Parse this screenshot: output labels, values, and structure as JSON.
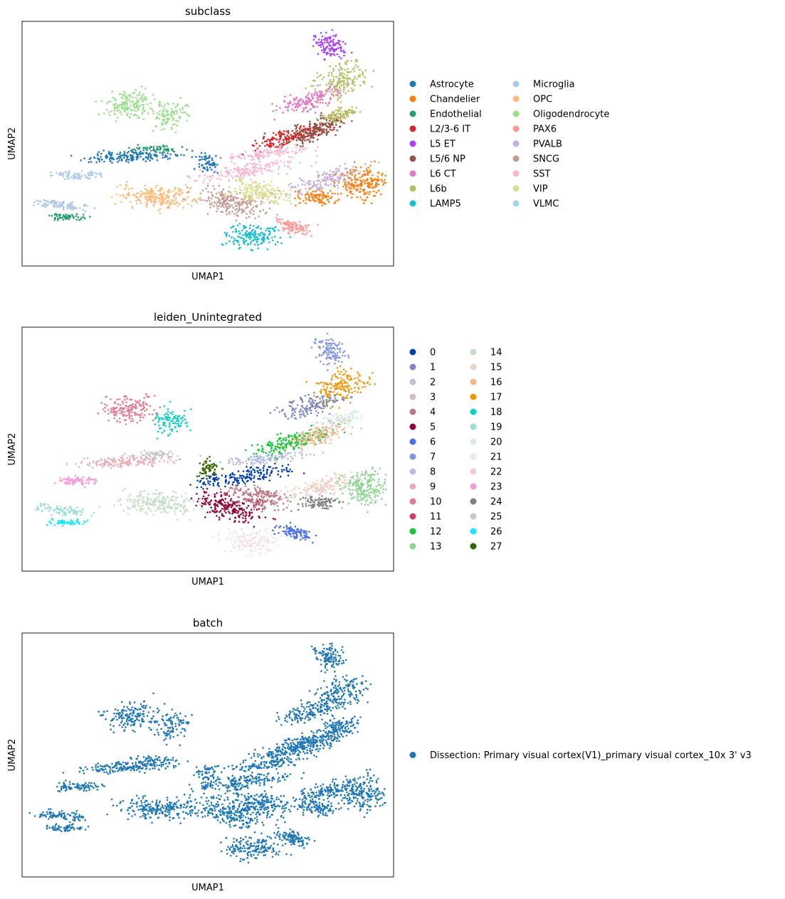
{
  "chart_data": [
    {
      "type": "scatter",
      "title": "subclass",
      "xlabel": "UMAP1",
      "ylabel": "UMAP2",
      "grid": false,
      "legend_placement": "right, two columns",
      "categories": [
        {
          "name": "Astrocyte",
          "color": "#1f77b4"
        },
        {
          "name": "Chandelier",
          "color": "#ff7f0e"
        },
        {
          "name": "Endothelial",
          "color": "#279e68"
        },
        {
          "name": "L2/3-6 IT",
          "color": "#d62728"
        },
        {
          "name": "L5 ET",
          "color": "#aa40fc"
        },
        {
          "name": "L5/6 NP",
          "color": "#8c564b"
        },
        {
          "name": "L6 CT",
          "color": "#e377c2"
        },
        {
          "name": "L6b",
          "color": "#b5bd61"
        },
        {
          "name": "LAMP5",
          "color": "#17becf"
        },
        {
          "name": "Microglia",
          "color": "#aec7e8"
        },
        {
          "name": "OPC",
          "color": "#ffbb78"
        },
        {
          "name": "Oligodendrocyte",
          "color": "#98df8a"
        },
        {
          "name": "PAX6",
          "color": "#ff9896"
        },
        {
          "name": "PVALB",
          "color": "#c5b0d5"
        },
        {
          "name": "SNCG",
          "color": "#c49c94"
        },
        {
          "name": "SST",
          "color": "#f7b6d2"
        },
        {
          "name": "VIP",
          "color": "#dbdb8d"
        },
        {
          "name": "VLMC",
          "color": "#9edae5"
        }
      ]
    },
    {
      "type": "scatter",
      "title": "leiden_Unintegrated",
      "xlabel": "UMAP1",
      "ylabel": "UMAP2",
      "grid": false,
      "legend_placement": "right, two columns",
      "categories": [
        {
          "name": "0",
          "color": "#023fa5"
        },
        {
          "name": "1",
          "color": "#7d87b9"
        },
        {
          "name": "2",
          "color": "#bec1d4"
        },
        {
          "name": "3",
          "color": "#d6bcc0"
        },
        {
          "name": "4",
          "color": "#bb7784"
        },
        {
          "name": "5",
          "color": "#8e063b"
        },
        {
          "name": "6",
          "color": "#4a6fe3"
        },
        {
          "name": "7",
          "color": "#8595e1"
        },
        {
          "name": "8",
          "color": "#b5bbe3"
        },
        {
          "name": "9",
          "color": "#e6afb9"
        },
        {
          "name": "10",
          "color": "#e07b91"
        },
        {
          "name": "11",
          "color": "#d33f6a"
        },
        {
          "name": "12",
          "color": "#11c638"
        },
        {
          "name": "13",
          "color": "#8dd593"
        },
        {
          "name": "14",
          "color": "#c6dec7"
        },
        {
          "name": "15",
          "color": "#ead3c6"
        },
        {
          "name": "16",
          "color": "#f0b98d"
        },
        {
          "name": "17",
          "color": "#ef9708"
        },
        {
          "name": "18",
          "color": "#0fcfc0"
        },
        {
          "name": "19",
          "color": "#9cded6"
        },
        {
          "name": "20",
          "color": "#d5eae7"
        },
        {
          "name": "21",
          "color": "#f3e1eb"
        },
        {
          "name": "22",
          "color": "#f6c4e1"
        },
        {
          "name": "23",
          "color": "#f79cd4"
        },
        {
          "name": "24",
          "color": "#7f7f7f"
        },
        {
          "name": "25",
          "color": "#c7c7c7"
        },
        {
          "name": "26",
          "color": "#1ce6ff"
        },
        {
          "name": "27",
          "color": "#336600"
        }
      ]
    },
    {
      "type": "scatter",
      "title": "batch",
      "xlabel": "UMAP1",
      "ylabel": "UMAP2",
      "grid": false,
      "legend_placement": "right",
      "categories": [
        {
          "name": "Dissection: Primary visual cortex(V1)_primary visual cortex_10x 3' v3",
          "color": "#1f77b4"
        }
      ]
    }
  ]
}
